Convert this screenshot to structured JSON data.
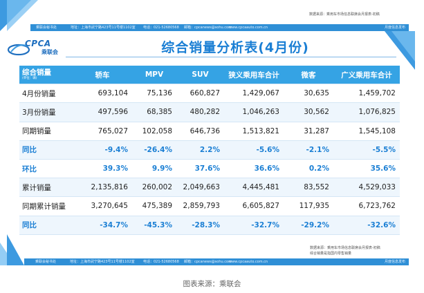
{
  "source_top": "数据来源：乘用车市场信息联席会月报表-初稿",
  "header_bar": {
    "org": "乘联会秘书处",
    "address": "地址：上海市武宁路423号11号楼1102室",
    "phone": "电话：021-52680568",
    "email": "邮箱：cpcanews@sohu.com",
    "website": "www.cpcaauto.com.cn",
    "right": "月度信息发布"
  },
  "logo": {
    "text": "CPCA",
    "sub": "乘联会"
  },
  "title": "综合销量分析表(4月份)",
  "note_lines": [
    "数据来源：乘用车市场信息联席会月报表-初稿",
    "综合销量是指国内零售销量"
  ],
  "footer_bar": {
    "org": "乘联会秘书处",
    "address": "地址：上海市武宁路423号11号楼1102室",
    "phone": "电话：021-52680568",
    "email": "邮箱：cpcanews@sohu.com",
    "website": "www.cpcaauto.com.cn",
    "right": "月度信息发布"
  },
  "caption": "图表来源：乘联会",
  "colors": {
    "accent": "#35a3e4",
    "title": "#1b7fd4",
    "bar": "#2f8fd6"
  },
  "chart_data": {
    "type": "table",
    "title": "综合销量分析表(4月份)",
    "header": {
      "label": "综合销量",
      "unit": "(单位：辆)"
    },
    "columns": [
      "轿车",
      "MPV",
      "SUV",
      "狭义乘用车合计",
      "微客",
      "广义乘用车合计"
    ],
    "rows": [
      {
        "label": "4月份销量",
        "kind": "num",
        "values": [
          "693,104",
          "75,136",
          "660,827",
          "1,429,067",
          "30,635",
          "1,459,702"
        ]
      },
      {
        "label": "3月份销量",
        "kind": "num",
        "values": [
          "497,596",
          "68,385",
          "480,282",
          "1,046,263",
          "30,562",
          "1,076,825"
        ]
      },
      {
        "label": "同期销量",
        "kind": "num",
        "values": [
          "765,027",
          "102,058",
          "646,736",
          "1,513,821",
          "31,287",
          "1,545,108"
        ]
      },
      {
        "label": "同比",
        "kind": "pct",
        "values": [
          "-9.4%",
          "-26.4%",
          "2.2%",
          "-5.6%",
          "-2.1%",
          "-5.5%"
        ]
      },
      {
        "label": "环比",
        "kind": "pct",
        "values": [
          "39.3%",
          "9.9%",
          "37.6%",
          "36.6%",
          "0.2%",
          "35.6%"
        ]
      },
      {
        "label": "累计销量",
        "kind": "num",
        "values": [
          "2,135,816",
          "260,002",
          "2,049,663",
          "4,445,481",
          "83,552",
          "4,529,033"
        ]
      },
      {
        "label": "同期累计销量",
        "kind": "num",
        "values": [
          "3,270,645",
          "475,389",
          "2,859,793",
          "6,605,827",
          "117,935",
          "6,723,762"
        ]
      },
      {
        "label": "同比",
        "kind": "pct",
        "values": [
          "-34.7%",
          "-45.3%",
          "-28.3%",
          "-32.7%",
          "-29.2%",
          "-32.6%"
        ]
      }
    ]
  }
}
